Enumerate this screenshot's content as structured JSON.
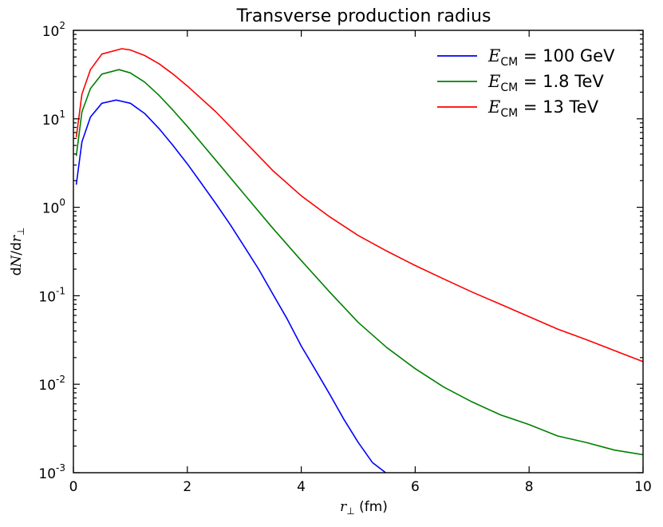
{
  "chart_data": {
    "type": "line",
    "title": "Transverse production radius",
    "xlabel": "r_⊥ (fm)",
    "ylabel": "dN/dr_⊥",
    "xlim": [
      0,
      10
    ],
    "ylim": [
      0.001,
      100
    ],
    "yscale": "log",
    "grid": false,
    "legend_position": "top-right",
    "x_ticks": [
      "0",
      "2",
      "4",
      "6",
      "8",
      "10"
    ],
    "y_ticks": [
      {
        "base": "10",
        "exp": "-3"
      },
      {
        "base": "10",
        "exp": "-2"
      },
      {
        "base": "10",
        "exp": "-1"
      },
      {
        "base": "10",
        "exp": "0"
      },
      {
        "base": "10",
        "exp": "1"
      },
      {
        "base": "10",
        "exp": "2"
      }
    ],
    "series": [
      {
        "name": "E_CM = 100 GeV",
        "legend_var": "E",
        "legend_sub": "CM",
        "legend_value": "= 100 GeV",
        "color": "#0000ff",
        "x": [
          0.05,
          0.15,
          0.3,
          0.5,
          0.75,
          1.0,
          1.25,
          1.5,
          1.75,
          2.0,
          2.25,
          2.5,
          2.75,
          3.0,
          3.25,
          3.5,
          3.75,
          4.0,
          4.25,
          4.5,
          4.75,
          5.0,
          5.25,
          5.5
        ],
        "y": [
          1.8,
          5.5,
          10.5,
          15,
          16.3,
          15,
          11.5,
          7.8,
          5.0,
          3.1,
          1.85,
          1.1,
          0.64,
          0.36,
          0.2,
          0.105,
          0.055,
          0.027,
          0.0145,
          0.0077,
          0.004,
          0.0022,
          0.0013,
          0.00098
        ]
      },
      {
        "name": "E_CM = 1.8 TeV",
        "legend_var": "E",
        "legend_sub": "CM",
        "legend_value": "= 1.8 TeV",
        "color": "#008000",
        "x": [
          0.05,
          0.15,
          0.3,
          0.5,
          0.8,
          1.0,
          1.25,
          1.5,
          1.75,
          2.0,
          2.5,
          3.0,
          3.5,
          4.0,
          4.5,
          5.0,
          5.5,
          6.0,
          6.5,
          7.0,
          7.5,
          8.0,
          8.5,
          9.0,
          9.5,
          10.0
        ],
        "y": [
          3.8,
          12,
          22,
          32,
          36,
          33,
          26,
          18.5,
          12.5,
          8.2,
          3.4,
          1.4,
          0.58,
          0.25,
          0.11,
          0.05,
          0.026,
          0.015,
          0.0093,
          0.0063,
          0.0045,
          0.0035,
          0.0026,
          0.0022,
          0.0018,
          0.0016
        ]
      },
      {
        "name": "E_CM = 13 TeV",
        "legend_var": "E",
        "legend_sub": "CM",
        "legend_value": "= 13 TeV",
        "color": "#ff0000",
        "x": [
          0.05,
          0.15,
          0.3,
          0.5,
          0.85,
          1.0,
          1.25,
          1.5,
          1.75,
          2.0,
          2.5,
          3.0,
          3.5,
          4.0,
          4.5,
          5.0,
          5.5,
          6.0,
          6.5,
          7.0,
          7.5,
          8.0,
          8.5,
          9.0,
          9.5,
          10.0
        ],
        "y": [
          6.2,
          19,
          36,
          54,
          62,
          60,
          52,
          42,
          32,
          23.5,
          12,
          5.6,
          2.6,
          1.35,
          0.78,
          0.48,
          0.32,
          0.22,
          0.155,
          0.11,
          0.08,
          0.058,
          0.042,
          0.032,
          0.024,
          0.018
        ]
      }
    ]
  }
}
